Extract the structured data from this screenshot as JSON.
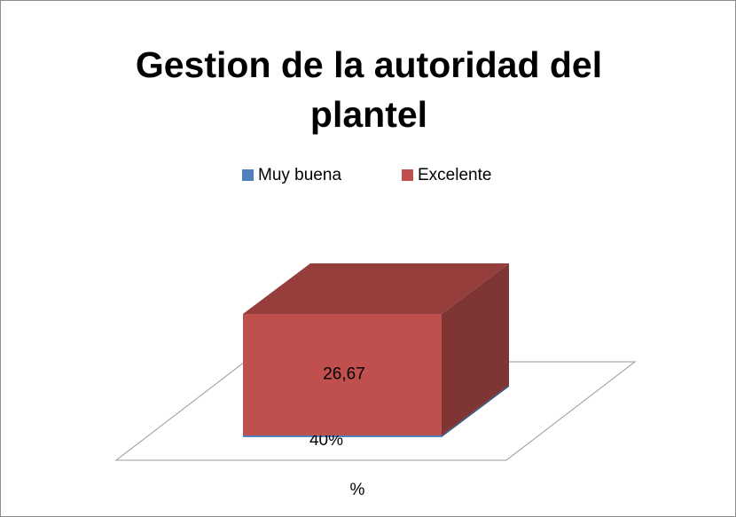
{
  "chart_data": {
    "type": "bar3d_stacked",
    "title": "Gestion de la autoridad del plantel",
    "categories": [
      "%"
    ],
    "series": [
      {
        "name": "Muy buena",
        "color": "#4f81bd",
        "values": [
          0.4
        ],
        "value_labels": [
          "40%"
        ]
      },
      {
        "name": "Excelente",
        "color": "#c0504d",
        "values": [
          26.67
        ],
        "value_labels": [
          "26,67"
        ]
      }
    ],
    "legend": "top"
  }
}
